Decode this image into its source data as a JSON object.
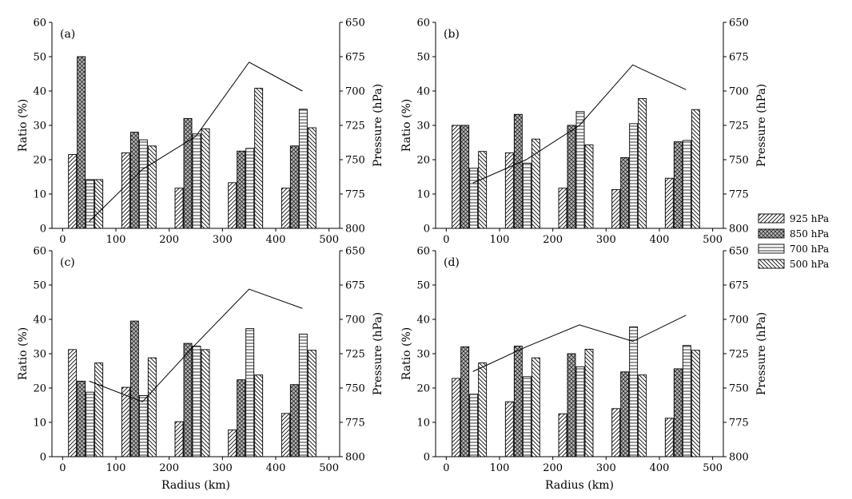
{
  "chart_data": [
    {
      "type": "bar",
      "panel_label": "(a)",
      "xlabel": "",
      "ylabel": "Ratio (%)",
      "y2label": "Pressure (hPa)",
      "xlim": [
        -20,
        520
      ],
      "ylim": [
        0,
        60
      ],
      "y2lim": [
        800,
        650
      ],
      "x": [
        50,
        150,
        250,
        350,
        450
      ],
      "xticks": [
        "0",
        "100",
        "200",
        "300",
        "400",
        "500"
      ],
      "yticks": [
        "0",
        "10",
        "20",
        "30",
        "40",
        "50",
        "60"
      ],
      "y2ticks": [
        "650",
        "675",
        "700",
        "725",
        "750",
        "775",
        "800"
      ],
      "series": [
        {
          "name": "925 hPa",
          "values": [
            21.5,
            22,
            11.7,
            13.3,
            11.7
          ]
        },
        {
          "name": "850 hPa",
          "values": [
            50,
            28,
            32,
            22.5,
            24
          ]
        },
        {
          "name": "700 hPa",
          "values": [
            14.2,
            25.8,
            27.5,
            23.3,
            34.7
          ]
        },
        {
          "name": "500 hPa",
          "values": [
            14.2,
            24,
            29,
            40.8,
            29.3
          ]
        }
      ],
      "line": {
        "name": "Pressure",
        "x": [
          50,
          150,
          250,
          350,
          450
        ],
        "values": [
          795,
          757,
          733,
          679,
          700
        ]
      }
    },
    {
      "type": "bar",
      "panel_label": "(b)",
      "xlabel": "",
      "ylabel": "Ratio (%)",
      "y2label": "Pressure (hPa)",
      "xlim": [
        -20,
        520
      ],
      "ylim": [
        0,
        60
      ],
      "y2lim": [
        800,
        650
      ],
      "x": [
        50,
        150,
        250,
        350,
        450
      ],
      "xticks": [
        "0",
        "100",
        "200",
        "300",
        "400",
        "500"
      ],
      "yticks": [
        "0",
        "10",
        "20",
        "30",
        "40",
        "50",
        "60"
      ],
      "y2ticks": [
        "650",
        "675",
        "700",
        "725",
        "750",
        "775",
        "800"
      ],
      "series": [
        {
          "name": "925 hPa",
          "values": [
            30,
            22,
            11.7,
            11.3,
            14.6
          ]
        },
        {
          "name": "850 hPa",
          "values": [
            30,
            33.2,
            30,
            20.6,
            25.2
          ]
        },
        {
          "name": "700 hPa",
          "values": [
            17.5,
            19,
            34,
            30.5,
            25.6
          ]
        },
        {
          "name": "500 hPa",
          "values": [
            22.4,
            26,
            24.3,
            37.8,
            34.6
          ]
        }
      ],
      "line": {
        "name": "Pressure",
        "x": [
          50,
          150,
          250,
          350,
          450
        ],
        "values": [
          767,
          750,
          725,
          681,
          699
        ]
      }
    },
    {
      "type": "bar",
      "panel_label": "(c)",
      "xlabel": "Radius (km)",
      "ylabel": "Ratio (%)",
      "y2label": "Pressure (hPa)",
      "xlim": [
        -20,
        520
      ],
      "ylim": [
        0,
        60
      ],
      "y2lim": [
        800,
        650
      ],
      "x": [
        50,
        150,
        250,
        350,
        450
      ],
      "xticks": [
        "0",
        "100",
        "200",
        "300",
        "400",
        "500"
      ],
      "yticks": [
        "0",
        "10",
        "20",
        "30",
        "40",
        "50",
        "60"
      ],
      "y2ticks": [
        "650",
        "675",
        "700",
        "725",
        "750",
        "775",
        "800"
      ],
      "series": [
        {
          "name": "925 hPa",
          "values": [
            31.2,
            20.2,
            10.2,
            7.8,
            12.6
          ]
        },
        {
          "name": "850 hPa",
          "values": [
            22,
            39.5,
            33,
            22.4,
            21
          ]
        },
        {
          "name": "700 hPa",
          "values": [
            18.8,
            17.8,
            32.2,
            37.3,
            35.7
          ]
        },
        {
          "name": "500 hPa",
          "values": [
            27.3,
            28.8,
            31.2,
            23.8,
            31
          ]
        }
      ],
      "line": {
        "name": "Pressure",
        "x": [
          50,
          150,
          250,
          350,
          450
        ],
        "values": [
          745,
          760,
          718,
          678,
          692
        ]
      }
    },
    {
      "type": "bar",
      "panel_label": "(d)",
      "xlabel": "Radius (km)",
      "ylabel": "Ratio (%)",
      "y2label": "Pressure (hPa)",
      "xlim": [
        -20,
        520
      ],
      "ylim": [
        0,
        60
      ],
      "y2lim": [
        800,
        650
      ],
      "x": [
        50,
        150,
        250,
        350,
        450
      ],
      "xticks": [
        "0",
        "100",
        "200",
        "300",
        "400",
        "500"
      ],
      "yticks": [
        "0",
        "10",
        "20",
        "30",
        "40",
        "50",
        "60"
      ],
      "y2ticks": [
        "650",
        "675",
        "700",
        "725",
        "750",
        "775",
        "800"
      ],
      "series": [
        {
          "name": "925 hPa",
          "values": [
            22.8,
            16,
            12.5,
            14,
            11.2
          ]
        },
        {
          "name": "850 hPa",
          "values": [
            32,
            32.2,
            30,
            24.7,
            25.6
          ]
        },
        {
          "name": "700 hPa",
          "values": [
            18.2,
            23.3,
            26.2,
            37.8,
            32.4
          ]
        },
        {
          "name": "500 hPa",
          "values": [
            27.3,
            28.8,
            31.3,
            23.8,
            31
          ]
        }
      ],
      "line": {
        "name": "Pressure",
        "x": [
          50,
          150,
          250,
          350,
          450
        ],
        "values": [
          738,
          720,
          704,
          716,
          697
        ]
      }
    }
  ],
  "legend": {
    "placement": "right",
    "items": [
      {
        "label": "925 hPa",
        "pattern": "forward-hatch"
      },
      {
        "label": "850 hPa",
        "pattern": "crosshatch-gray"
      },
      {
        "label": "700 hPa",
        "pattern": "horizontal-lines"
      },
      {
        "label": "500 hPa",
        "pattern": "back-hatch"
      }
    ]
  }
}
